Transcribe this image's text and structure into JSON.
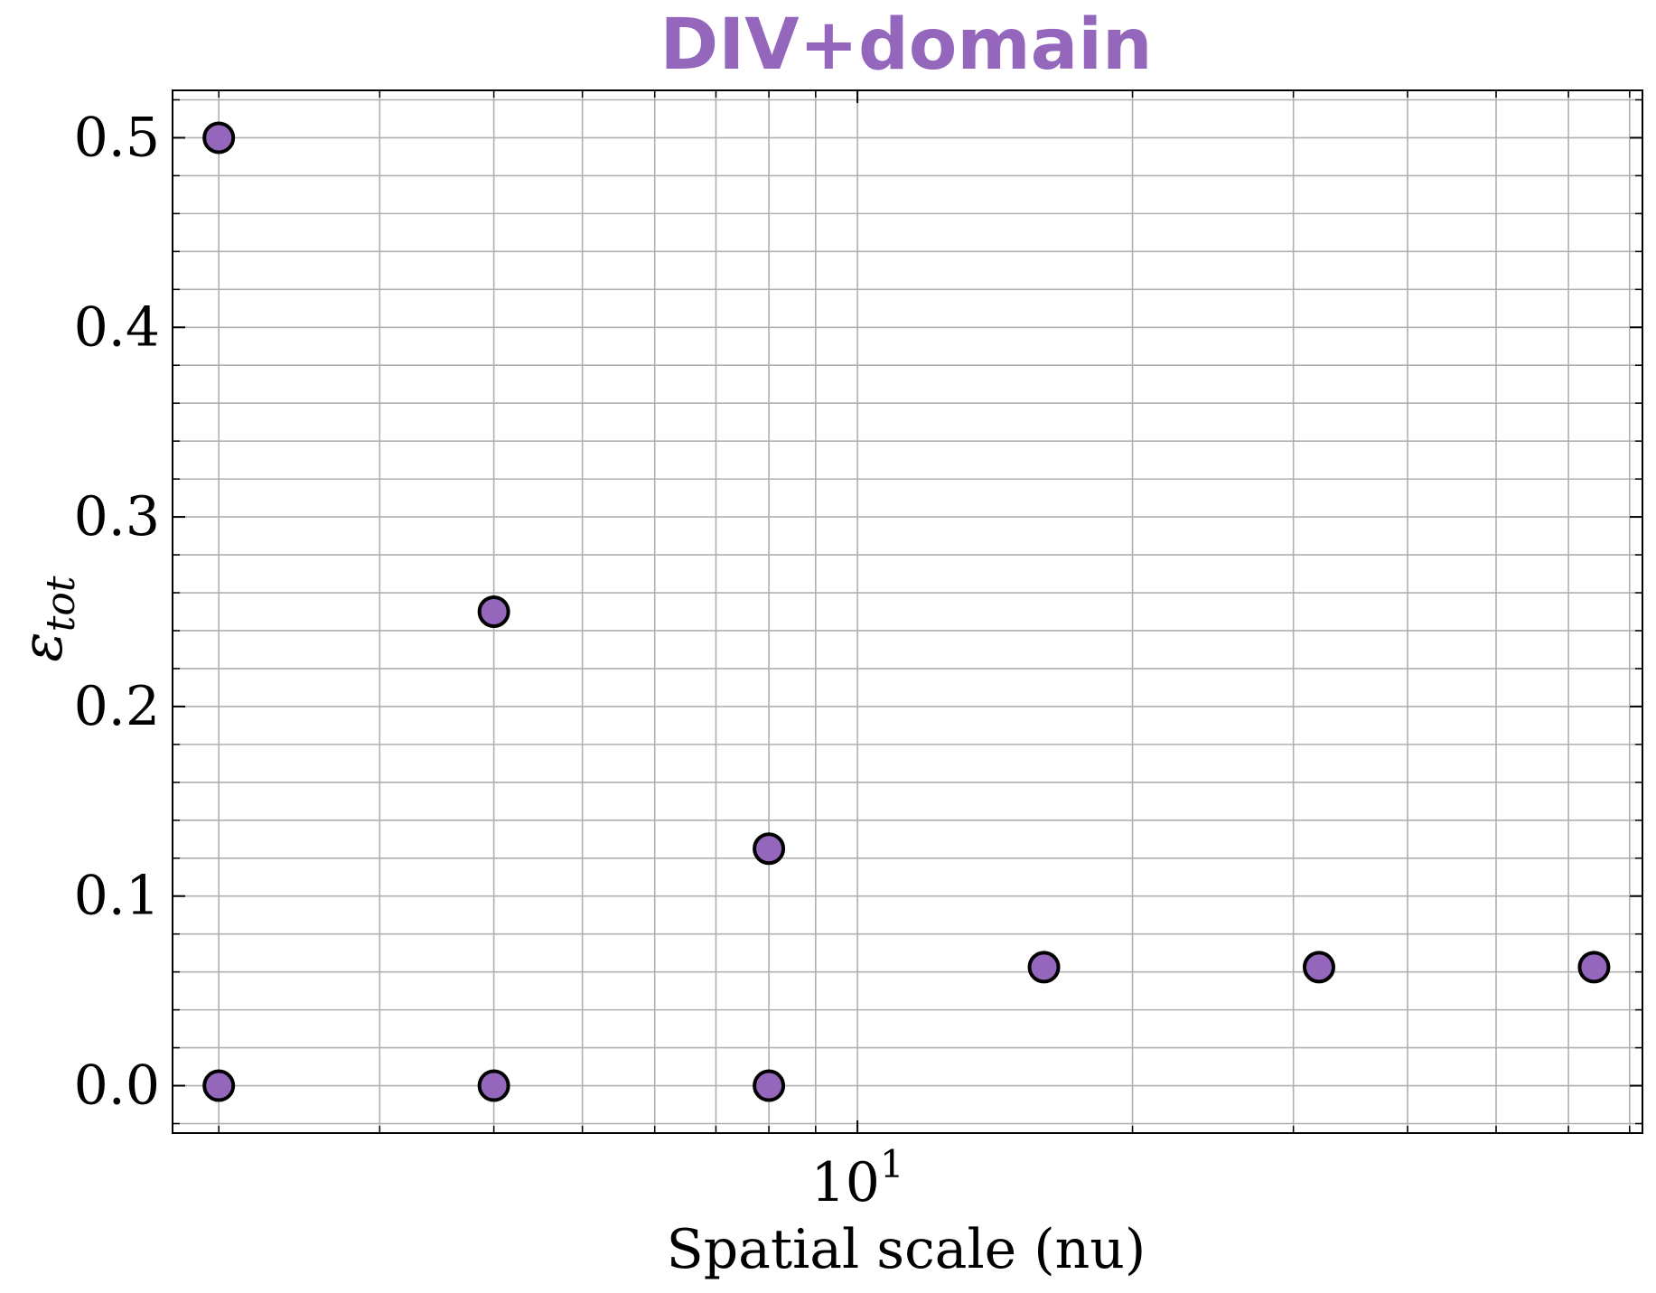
{
  "chart_data": {
    "type": "scatter",
    "title": "DIV+domain",
    "title_color": "#9467bd",
    "xlabel": "Spatial scale (nu)",
    "ylabel": "ε",
    "ylabel_sub": "tot",
    "x_scale": "log",
    "xlim": [
      1.78,
      72.3
    ],
    "ylim": [
      -0.025,
      0.525
    ],
    "x_major_tick_labels": [
      {
        "base": "10",
        "exp": "1",
        "value": 10
      }
    ],
    "y_ticks": [
      0.0,
      0.1,
      0.2,
      0.3,
      0.4,
      0.5
    ],
    "y_tick_labels": [
      "0.0",
      "0.1",
      "0.2",
      "0.3",
      "0.4",
      "0.5"
    ],
    "grid": true,
    "marker_color": "#9467bd",
    "marker_edge_color": "#000000",
    "points": [
      {
        "x": 2,
        "y": 0.5
      },
      {
        "x": 2,
        "y": 0.0
      },
      {
        "x": 4,
        "y": 0.25
      },
      {
        "x": 4,
        "y": 0.0
      },
      {
        "x": 8,
        "y": 0.125
      },
      {
        "x": 8,
        "y": 0.0
      },
      {
        "x": 16,
        "y": 0.0625
      },
      {
        "x": 32,
        "y": 0.0625
      },
      {
        "x": 64,
        "y": 0.0625
      }
    ]
  }
}
